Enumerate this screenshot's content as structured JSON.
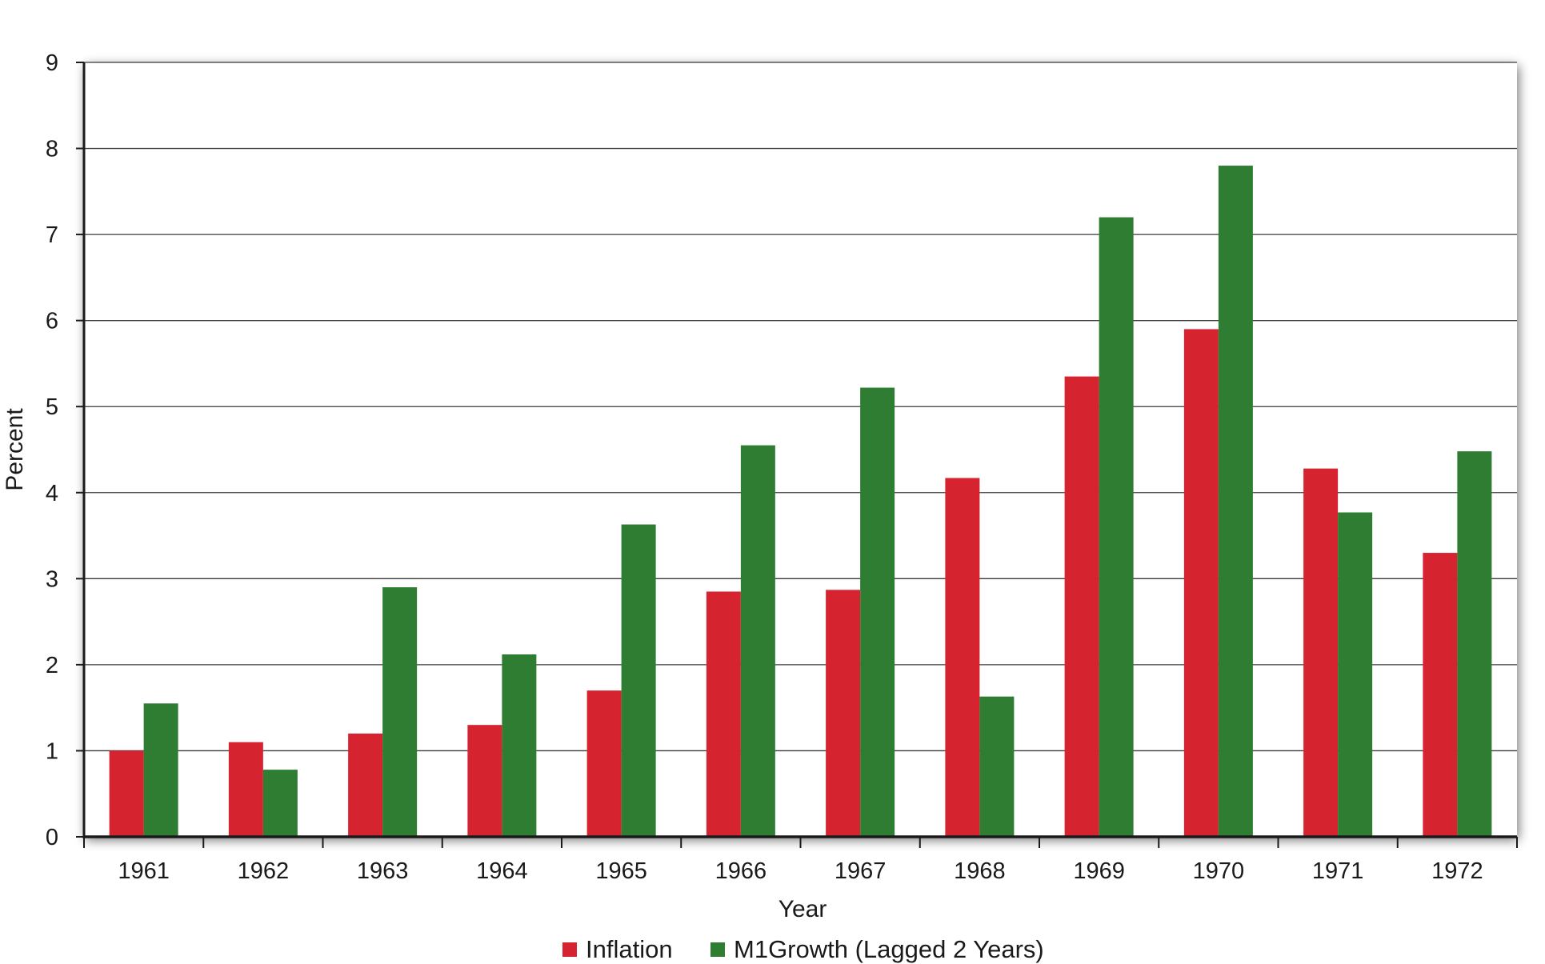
{
  "chart_data": {
    "type": "bar",
    "categories": [
      "1961",
      "1962",
      "1963",
      "1964",
      "1965",
      "1966",
      "1967",
      "1968",
      "1969",
      "1970",
      "1971",
      "1972"
    ],
    "series": [
      {
        "name": "Inflation",
        "color": "#d52330",
        "values": [
          1.0,
          1.1,
          1.2,
          1.3,
          1.7,
          2.85,
          2.87,
          4.17,
          5.35,
          5.9,
          4.28,
          3.3
        ]
      },
      {
        "name": "M1Growth (Lagged 2 Years)",
        "color": "#2f7d32",
        "values": [
          1.55,
          0.78,
          2.9,
          2.12,
          3.63,
          4.55,
          5.22,
          1.63,
          7.2,
          7.8,
          3.77,
          4.48
        ]
      }
    ],
    "title": "",
    "xlabel": "Year",
    "ylabel": "Percent",
    "ylim": [
      0,
      9
    ],
    "yticks": [
      "0",
      "1",
      "2",
      "3",
      "4",
      "5",
      "6",
      "7",
      "8",
      "9"
    ],
    "grid": true,
    "legend_position": "bottom-center"
  }
}
